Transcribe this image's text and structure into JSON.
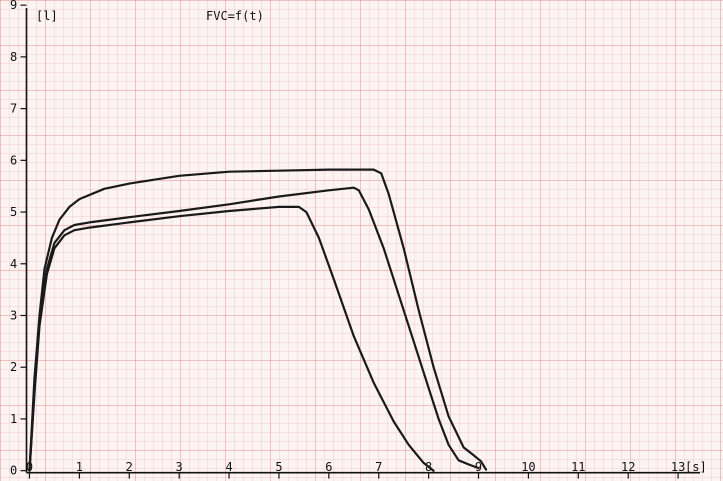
{
  "chart_data": {
    "type": "line",
    "title": "FVC=f(t)",
    "ylabel": "[l]",
    "xlabel": "[s]",
    "x_ticks": [
      "0",
      "1",
      "2",
      "3",
      "4",
      "5",
      "6",
      "7",
      "8",
      "9",
      "10",
      "11",
      "12",
      "13"
    ],
    "y_ticks": [
      "0",
      "1",
      "2",
      "3",
      "4",
      "5",
      "6",
      "7",
      "8",
      "9"
    ],
    "xlim": [
      -0.15,
      13.9
    ],
    "ylim": [
      -0.2,
      9.1
    ],
    "grid": true,
    "colors": {
      "background": "#fcf3f3",
      "grid_minor": "#f2c2c2",
      "grid_major": "#e58e8e",
      "curve": "#1a1a1a",
      "axis": "#111111"
    },
    "series": [
      {
        "x": [
          0,
          0.1,
          0.2,
          0.3,
          0.45,
          0.6,
          0.8,
          1,
          1.5,
          2,
          3,
          4,
          5,
          6,
          6.9,
          7.05,
          7.2,
          7.5,
          7.8,
          8.1,
          8.4,
          8.7,
          8.9,
          9.05,
          9.15
        ],
        "y": [
          0,
          1.8,
          3.0,
          3.9,
          4.5,
          4.85,
          5.1,
          5.25,
          5.45,
          5.55,
          5.7,
          5.78,
          5.8,
          5.82,
          5.82,
          5.75,
          5.35,
          4.3,
          3.1,
          2.0,
          1.05,
          0.45,
          0.3,
          0.18,
          0.02
        ]
      },
      {
        "x": [
          0,
          0.1,
          0.2,
          0.35,
          0.5,
          0.7,
          0.9,
          1.2,
          2,
          3,
          4,
          5,
          6,
          6.5,
          6.6,
          6.8,
          7.1,
          7.4,
          7.7,
          8.0,
          8.2,
          8.4,
          8.6,
          8.8,
          9.0
        ],
        "y": [
          0,
          1.6,
          2.9,
          3.9,
          4.4,
          4.65,
          4.75,
          4.8,
          4.9,
          5.02,
          5.15,
          5.3,
          5.42,
          5.47,
          5.42,
          5.05,
          4.3,
          3.4,
          2.5,
          1.6,
          1.0,
          0.5,
          0.2,
          0.12,
          0.05
        ]
      },
      {
        "x": [
          0,
          0.1,
          0.2,
          0.35,
          0.5,
          0.7,
          0.9,
          1.2,
          2,
          3,
          4,
          5,
          5.4,
          5.55,
          5.8,
          6.1,
          6.5,
          6.9,
          7.3,
          7.6,
          7.9,
          8.1
        ],
        "y": [
          0,
          1.5,
          2.8,
          3.8,
          4.3,
          4.55,
          4.65,
          4.7,
          4.8,
          4.92,
          5.02,
          5.1,
          5.1,
          5.0,
          4.5,
          3.7,
          2.6,
          1.7,
          0.95,
          0.5,
          0.15,
          0.0
        ]
      }
    ]
  }
}
